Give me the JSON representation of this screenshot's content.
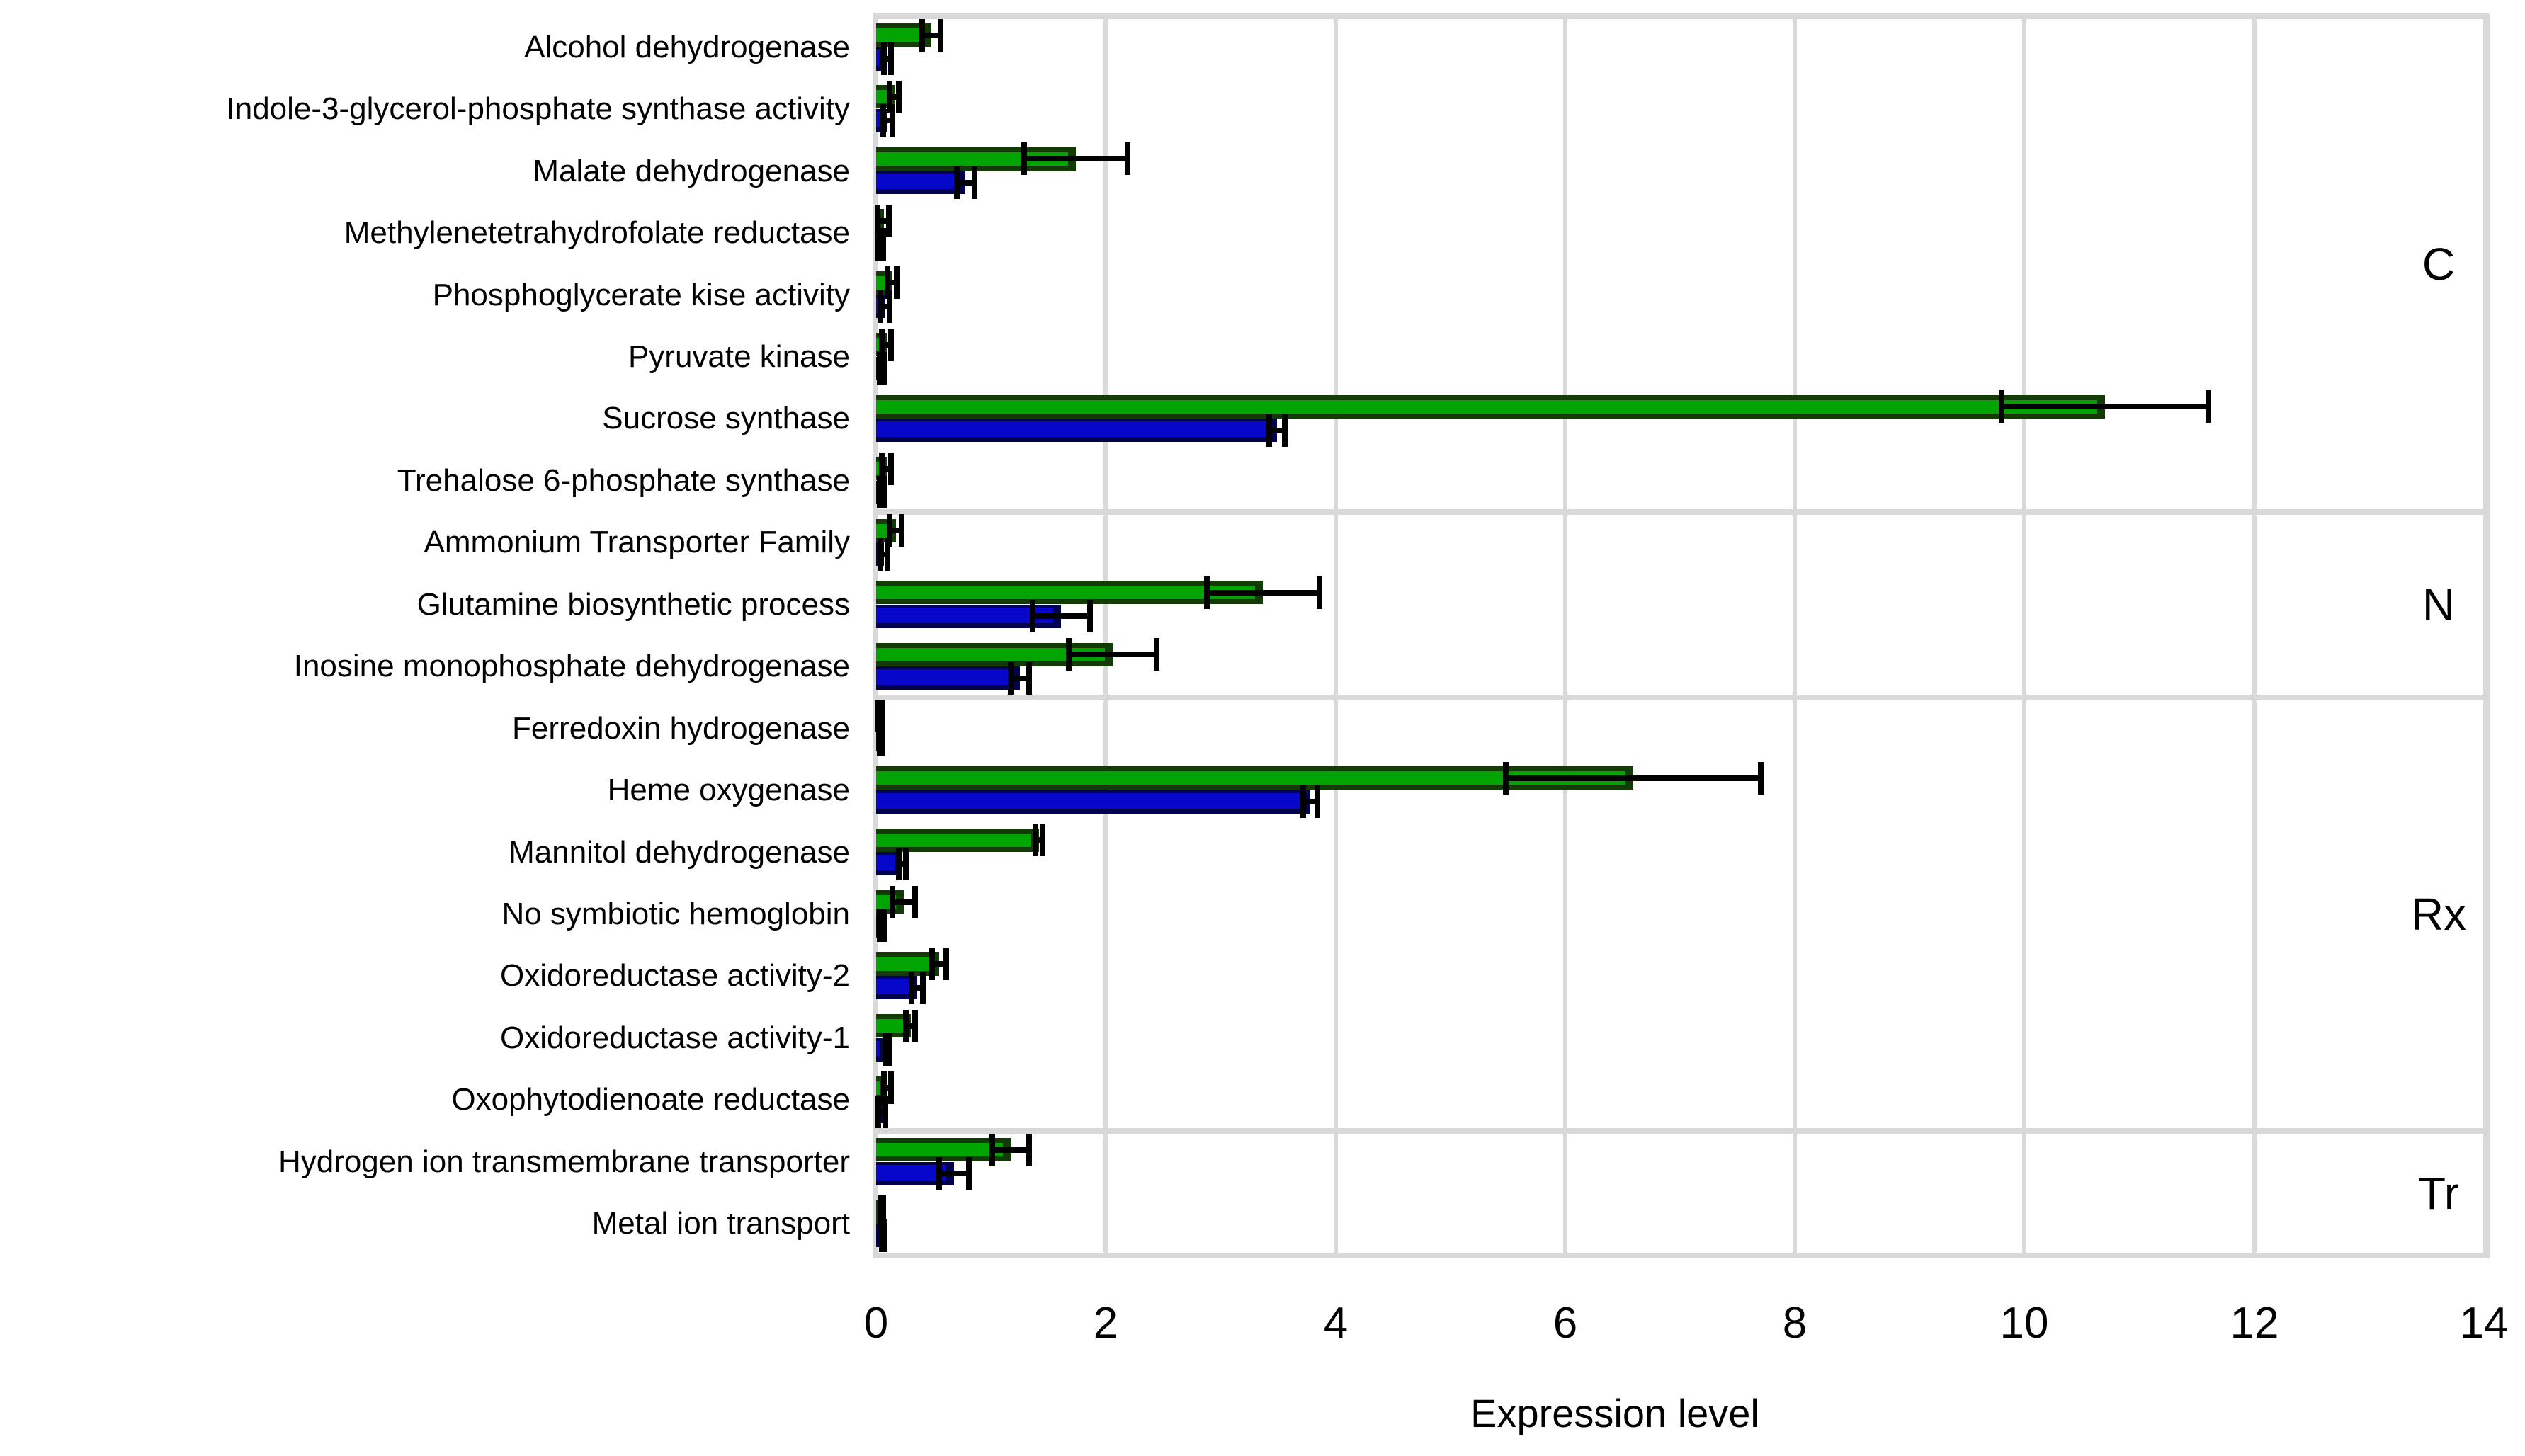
{
  "chart_data": {
    "type": "bar",
    "orientation": "horizontal",
    "xlabel": "Expression level",
    "xlim": [
      0,
      14
    ],
    "xticks": [
      0,
      2,
      4,
      6,
      8,
      10,
      12,
      14
    ],
    "grid": "vertical-gridlines-every-2-units",
    "legend": "none",
    "categories": [
      "Alcohol dehydrogenase",
      "Indole-3-glycerol-phosphate synthase activity",
      "Malate dehydrogenase",
      "Methylenetetrahydrofolate reductase",
      "Phosphoglycerate kise activity",
      "Pyruvate kinase",
      "Sucrose synthase",
      "Trehalose 6-phosphate synthase",
      "Ammonium Transporter Family",
      "Glutamine biosynthetic process",
      "Inosine monophosphate dehydrogenase",
      "Ferredoxin hydrogenase",
      "Heme oxygenase",
      "Mannitol dehydrogenase",
      "No symbiotic hemoglobin",
      "Oxidoreductase activity-2",
      "Oxidoreductase activity-1",
      "Oxophytodienoate reductase",
      "Hydrogen ion transmembrane transporter",
      "Metal ion transport"
    ],
    "groups": [
      {
        "label": "C",
        "count": 8
      },
      {
        "label": "N",
        "count": 3
      },
      {
        "label": "Rx",
        "count": 7
      },
      {
        "label": "Tr",
        "count": 2
      }
    ],
    "series": [
      {
        "name": "green",
        "color": "#00a400",
        "edge_color": "#123b06",
        "values": [
          0.48,
          0.16,
          1.74,
          0.06,
          0.14,
          0.09,
          10.7,
          0.09,
          0.17,
          3.37,
          2.06,
          0.03,
          6.59,
          1.42,
          0.24,
          0.55,
          0.3,
          0.1,
          1.17,
          0.05
        ],
        "errors": [
          0.08,
          0.04,
          0.45,
          0.05,
          0.04,
          0.04,
          0.9,
          0.04,
          0.05,
          0.49,
          0.38,
          0.02,
          1.11,
          0.03,
          0.1,
          0.06,
          0.04,
          0.03,
          0.16,
          0.01
        ]
      },
      {
        "name": "blue",
        "color": "#0707c9",
        "edge_color": "#02024e",
        "values": [
          0.1,
          0.1,
          0.78,
          0.04,
          0.08,
          0.05,
          3.49,
          0.05,
          0.07,
          1.61,
          1.25,
          0.04,
          3.78,
          0.23,
          0.05,
          0.36,
          0.1,
          0.05,
          0.68,
          0.06
        ],
        "errors": [
          0.03,
          0.04,
          0.08,
          0.02,
          0.04,
          0.02,
          0.07,
          0.02,
          0.03,
          0.25,
          0.08,
          0.01,
          0.06,
          0.03,
          0.02,
          0.05,
          0.02,
          0.03,
          0.13,
          0.01
        ]
      }
    ],
    "error_bar_color": "#000000",
    "grid_color": "#d9d9d9"
  }
}
